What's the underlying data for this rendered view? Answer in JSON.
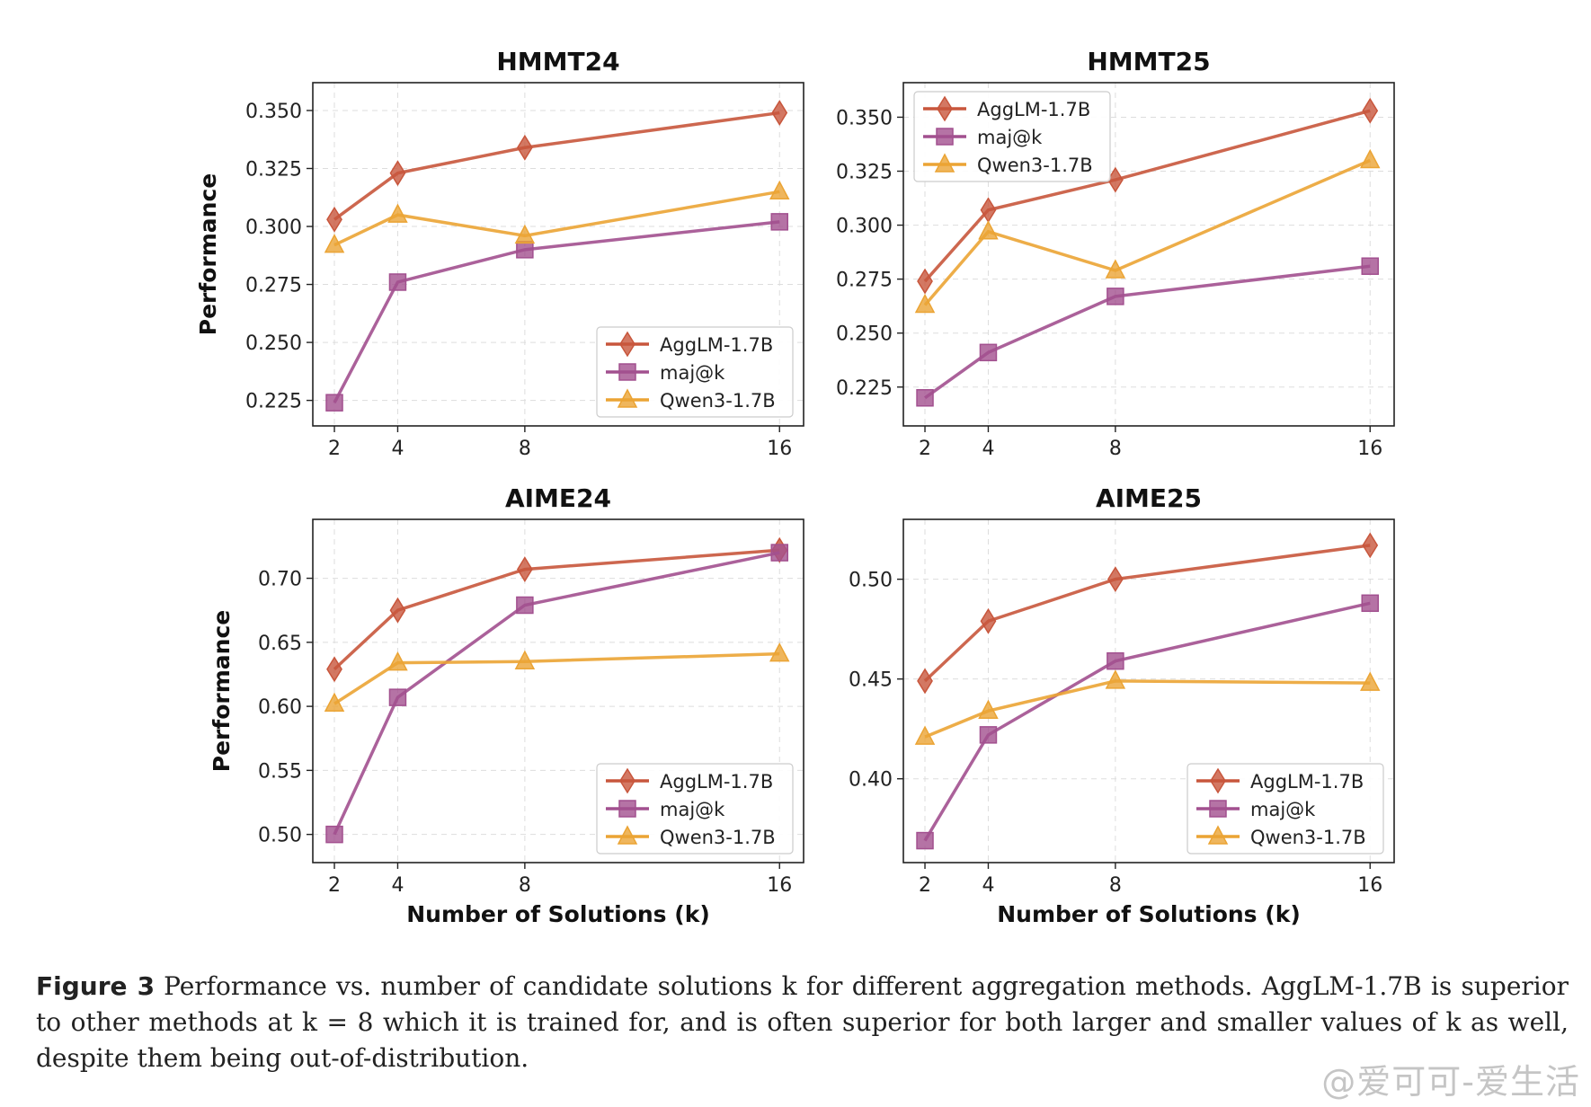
{
  "legend_entries": [
    "AggLM-1.7B",
    "maj@k",
    "Qwen3-1.7B"
  ],
  "colors": {
    "agglm": "#c8563c",
    "majk": "#a2508f",
    "qwen": "#eba434"
  },
  "chart_data": [
    {
      "type": "line",
      "title": "HMMT24",
      "xlabel": "",
      "ylabel": "Performance",
      "x": [
        2,
        4,
        8,
        16
      ],
      "x_ticks": [
        "2",
        "4",
        "8",
        "16"
      ],
      "ylim": [
        0.214,
        0.362
      ],
      "y_ticks": [
        0.225,
        0.25,
        0.275,
        0.3,
        0.325,
        0.35
      ],
      "y_tick_labels": [
        "0.225",
        "0.250",
        "0.275",
        "0.300",
        "0.325",
        "0.350"
      ],
      "legend": "lower-right",
      "grid": true,
      "series": [
        {
          "name": "AggLM-1.7B",
          "marker": "diamond",
          "values": [
            0.303,
            0.323,
            0.334,
            0.349
          ]
        },
        {
          "name": "maj@k",
          "marker": "square",
          "values": [
            0.224,
            0.276,
            0.29,
            0.302
          ]
        },
        {
          "name": "Qwen3-1.7B",
          "marker": "triangle",
          "values": [
            0.292,
            0.305,
            0.296,
            0.315
          ]
        }
      ]
    },
    {
      "type": "line",
      "title": "HMMT25",
      "xlabel": "",
      "ylabel": "",
      "x": [
        2,
        4,
        8,
        16
      ],
      "x_ticks": [
        "2",
        "4",
        "8",
        "16"
      ],
      "ylim": [
        0.207,
        0.366
      ],
      "y_ticks": [
        0.225,
        0.25,
        0.275,
        0.3,
        0.325,
        0.35
      ],
      "y_tick_labels": [
        "0.225",
        "0.250",
        "0.275",
        "0.300",
        "0.325",
        "0.350"
      ],
      "legend": "upper-left",
      "grid": true,
      "series": [
        {
          "name": "AggLM-1.7B",
          "marker": "diamond",
          "values": [
            0.274,
            0.307,
            0.321,
            0.353
          ]
        },
        {
          "name": "maj@k",
          "marker": "square",
          "values": [
            0.22,
            0.241,
            0.267,
            0.281
          ]
        },
        {
          "name": "Qwen3-1.7B",
          "marker": "triangle",
          "values": [
            0.263,
            0.297,
            0.279,
            0.33
          ]
        }
      ]
    },
    {
      "type": "line",
      "title": "AIME24",
      "xlabel": "Number of Solutions (k)",
      "ylabel": "Performance",
      "x": [
        2,
        4,
        8,
        16
      ],
      "x_ticks": [
        "2",
        "4",
        "8",
        "16"
      ],
      "ylim": [
        0.478,
        0.746
      ],
      "y_ticks": [
        0.5,
        0.55,
        0.6,
        0.65,
        0.7
      ],
      "y_tick_labels": [
        "0.50",
        "0.55",
        "0.60",
        "0.65",
        "0.70"
      ],
      "legend": "lower-right",
      "grid": true,
      "series": [
        {
          "name": "AggLM-1.7B",
          "marker": "diamond",
          "values": [
            0.629,
            0.675,
            0.707,
            0.722
          ]
        },
        {
          "name": "maj@k",
          "marker": "square",
          "values": [
            0.5,
            0.607,
            0.679,
            0.72
          ]
        },
        {
          "name": "Qwen3-1.7B",
          "marker": "triangle",
          "values": [
            0.602,
            0.634,
            0.635,
            0.641
          ]
        }
      ]
    },
    {
      "type": "line",
      "title": "AIME25",
      "xlabel": "Number of Solutions (k)",
      "ylabel": "",
      "x": [
        2,
        4,
        8,
        16
      ],
      "x_ticks": [
        "2",
        "4",
        "8",
        "16"
      ],
      "ylim": [
        0.358,
        0.53
      ],
      "y_ticks": [
        0.4,
        0.45,
        0.5
      ],
      "y_tick_labels": [
        "0.40",
        "0.45",
        "0.50"
      ],
      "legend": "lower-right",
      "grid": true,
      "series": [
        {
          "name": "AggLM-1.7B",
          "marker": "diamond",
          "values": [
            0.449,
            0.479,
            0.5,
            0.517
          ]
        },
        {
          "name": "maj@k",
          "marker": "square",
          "values": [
            0.369,
            0.422,
            0.459,
            0.488
          ]
        },
        {
          "name": "Qwen3-1.7B",
          "marker": "triangle",
          "values": [
            0.421,
            0.434,
            0.449,
            0.448
          ]
        }
      ]
    }
  ],
  "caption": {
    "label": "Figure 3",
    "text": "Performance vs. number of candidate solutions k for different aggregation methods. AggLM-1.7B is superior to other methods at k = 8 which it is trained for, and is often superior for both larger and smaller values of k as well, despite them being out-of-distribution."
  },
  "watermark": "@爱可可-爱生活"
}
